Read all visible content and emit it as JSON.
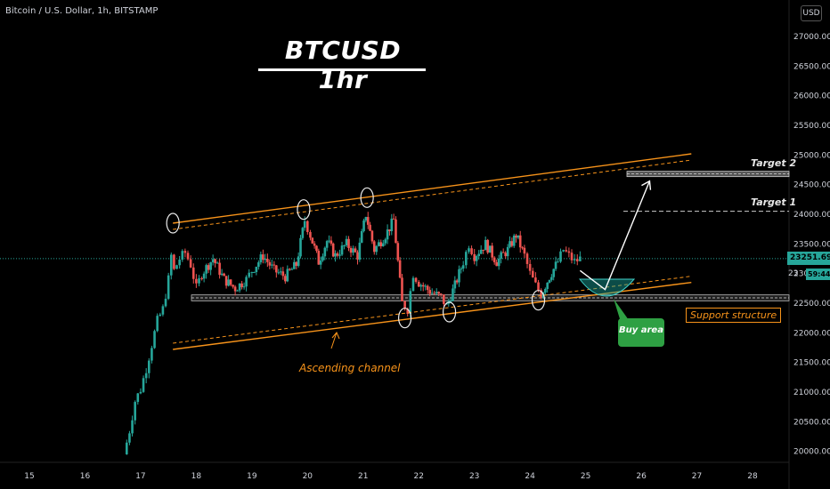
{
  "header": {
    "symbol_title": "Bitcoin / U.S. Dollar, 1h, BITSTAMP",
    "currency_button": "USD"
  },
  "annotations": {
    "main_title": "BTCUSD 1hr",
    "target_1": "Target 1",
    "target_2": "Target 2",
    "ascending_channel": "Ascending channel",
    "support_structure": "Support structure",
    "buy_area": "Buy area"
  },
  "price_scale": {
    "last_price": "23251.69",
    "countdown": "59:44",
    "partial_price": "23"
  },
  "colors": {
    "background": "#000000",
    "up_candle": "#26a69a",
    "down_candle": "#ef5350",
    "channel": "#f7931a",
    "support_zone": "#ffffff",
    "buy_area_fill": "#1ba8a0",
    "buy_label": "#2ea043",
    "last_price_line": "#26a69a"
  },
  "chart_data": {
    "type": "candlestick",
    "title": "BTCUSD 1hr",
    "x_ticks": [
      "15",
      "16",
      "17",
      "18",
      "19",
      "20",
      "21",
      "22",
      "23",
      "24",
      "25",
      "26",
      "27",
      "28"
    ],
    "y_ticks": [
      "27000.00",
      "26500.00",
      "26000.00",
      "25500.00",
      "25000.00",
      "24500.00",
      "24000.00",
      "23500.00",
      "23000.00",
      "22500.00",
      "22000.00",
      "21500.00",
      "21000.00",
      "20500.00",
      "20000.00"
    ],
    "ylim": [
      19920,
      27180
    ],
    "grid": false,
    "close_path": [
      [
        16.7,
        19950
      ],
      [
        16.8,
        20350
      ],
      [
        16.9,
        20850
      ],
      [
        17.0,
        21050
      ],
      [
        17.1,
        21400
      ],
      [
        17.2,
        21800
      ],
      [
        17.3,
        22200
      ],
      [
        17.4,
        22400
      ],
      [
        17.5,
        22900
      ],
      [
        17.55,
        23300
      ],
      [
        17.6,
        23050
      ],
      [
        17.7,
        23250
      ],
      [
        17.8,
        23350
      ],
      [
        17.9,
        23150
      ],
      [
        18.0,
        22750
      ],
      [
        18.1,
        23000
      ],
      [
        18.3,
        23250
      ],
      [
        18.5,
        22900
      ],
      [
        18.7,
        22750
      ],
      [
        18.9,
        22900
      ],
      [
        19.0,
        23050
      ],
      [
        19.2,
        23300
      ],
      [
        19.4,
        23050
      ],
      [
        19.6,
        22950
      ],
      [
        19.8,
        23150
      ],
      [
        19.95,
        23900
      ],
      [
        20.05,
        23650
      ],
      [
        20.2,
        23200
      ],
      [
        20.35,
        23550
      ],
      [
        20.5,
        23300
      ],
      [
        20.7,
        23500
      ],
      [
        20.9,
        23300
      ],
      [
        21.05,
        24000
      ],
      [
        21.2,
        23400
      ],
      [
        21.4,
        23650
      ],
      [
        21.55,
        23900
      ],
      [
        21.7,
        22500
      ],
      [
        21.8,
        22400
      ],
      [
        21.9,
        23000
      ],
      [
        22.0,
        22850
      ],
      [
        22.2,
        22700
      ],
      [
        22.4,
        22600
      ],
      [
        22.5,
        22450
      ],
      [
        22.65,
        22800
      ],
      [
        22.8,
        23200
      ],
      [
        22.9,
        23500
      ],
      [
        23.0,
        23300
      ],
      [
        23.2,
        23500
      ],
      [
        23.4,
        23200
      ],
      [
        23.6,
        23400
      ],
      [
        23.75,
        23650
      ],
      [
        23.9,
        23300
      ],
      [
        24.0,
        23000
      ],
      [
        24.1,
        22800
      ],
      [
        24.2,
        22650
      ],
      [
        24.35,
        22950
      ],
      [
        24.5,
        23200
      ],
      [
        24.6,
        23400
      ],
      [
        24.7,
        23300
      ],
      [
        24.8,
        23200
      ],
      [
        24.9,
        23250
      ]
    ],
    "channel_upper": [
      [
        17.58,
        23850
      ],
      [
        26.9,
        25020
      ]
    ],
    "channel_lower": [
      [
        17.58,
        21720
      ],
      [
        26.9,
        22850
      ]
    ],
    "support_zone": [
      22540,
      22640
    ],
    "target_1": 24050,
    "target_2": 24680,
    "last_price": 23251.69,
    "touch_points": [
      [
        17.58,
        23850
      ],
      [
        19.93,
        24080
      ],
      [
        21.07,
        24280
      ],
      [
        21.75,
        22250
      ],
      [
        22.55,
        22350
      ],
      [
        24.15,
        22550
      ]
    ],
    "projection": [
      [
        24.9,
        23050
      ],
      [
        25.35,
        22730
      ],
      [
        26.15,
        24560
      ]
    ]
  }
}
